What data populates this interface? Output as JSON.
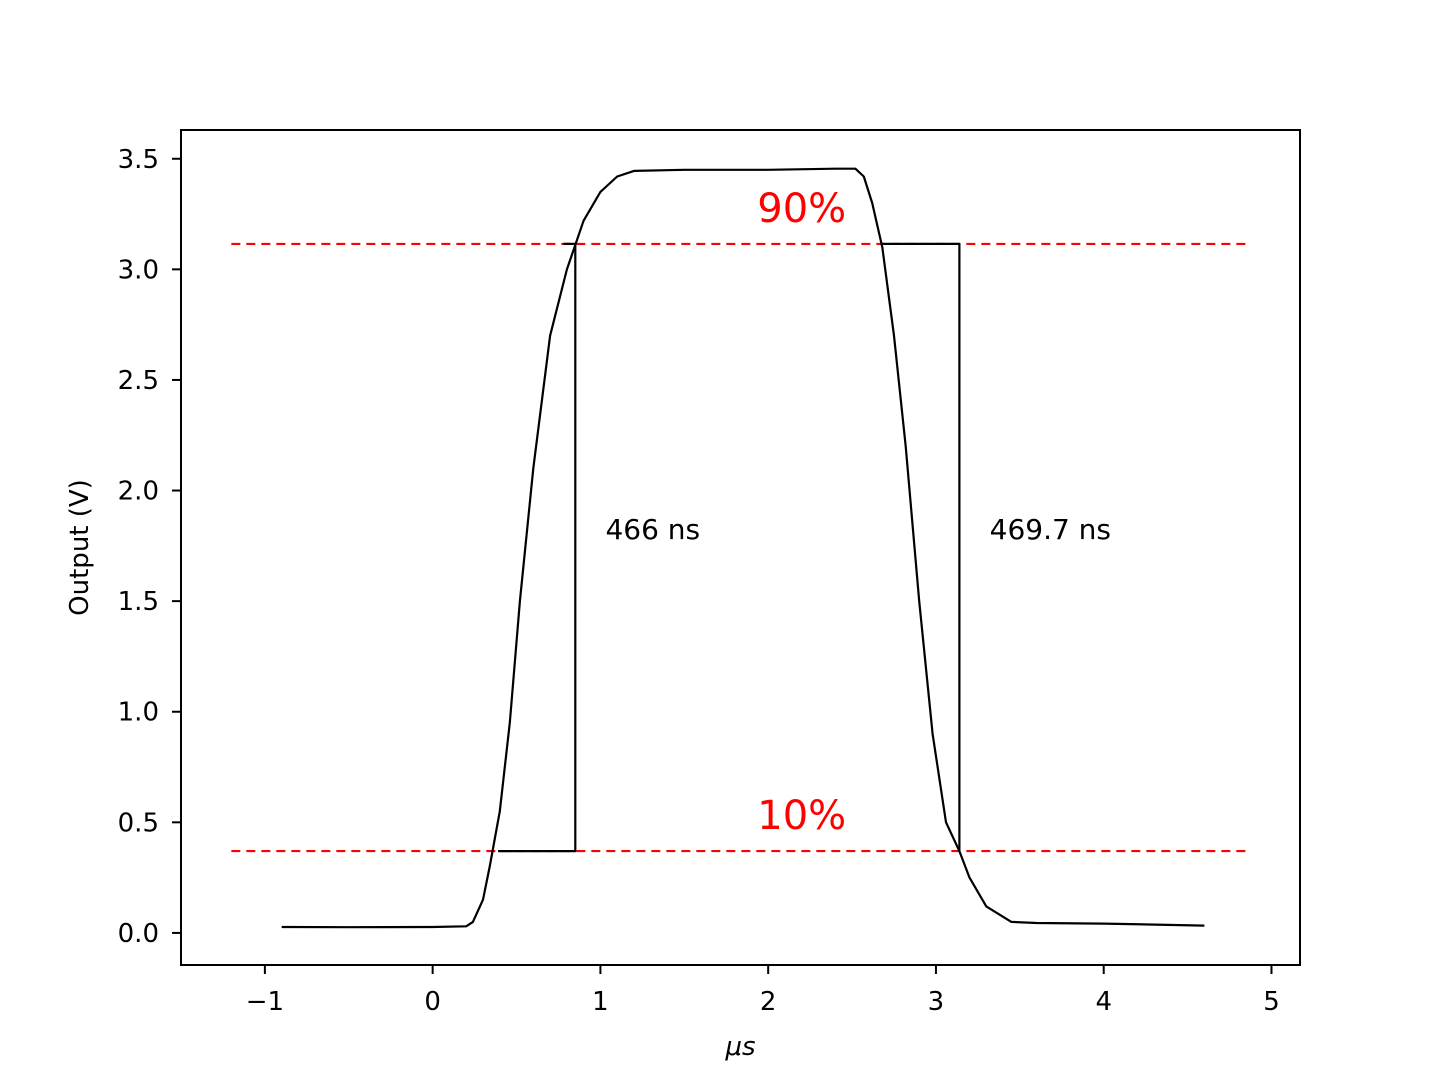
{
  "chart_data": {
    "type": "line",
    "title": "",
    "xlabel": "μs",
    "ylabel": "Output (V)",
    "xlim": [
      -1.5,
      5.17
    ],
    "ylim": [
      -0.145,
      3.63
    ],
    "x_ticks": [
      -1,
      0,
      1,
      2,
      3,
      4,
      5
    ],
    "x_tick_labels": [
      "−1",
      "0",
      "1",
      "2",
      "3",
      "4",
      "5"
    ],
    "y_ticks": [
      0.0,
      0.5,
      1.0,
      1.5,
      2.0,
      2.5,
      3.0,
      3.5
    ],
    "y_tick_labels": [
      "0.0",
      "0.5",
      "1.0",
      "1.5",
      "2.0",
      "2.5",
      "3.0",
      "3.5"
    ],
    "grid": false,
    "series": [
      {
        "color": "#000000",
        "points": [
          [
            -0.9,
            0.027
          ],
          [
            -0.5,
            0.026
          ],
          [
            0.0,
            0.027
          ],
          [
            0.2,
            0.03
          ],
          [
            0.24,
            0.05
          ],
          [
            0.3,
            0.15
          ],
          [
            0.34,
            0.3
          ],
          [
            0.4,
            0.55
          ],
          [
            0.46,
            0.95
          ],
          [
            0.52,
            1.5
          ],
          [
            0.6,
            2.1
          ],
          [
            0.7,
            2.7
          ],
          [
            0.8,
            3.0
          ],
          [
            0.9,
            3.22
          ],
          [
            1.0,
            3.35
          ],
          [
            1.1,
            3.42
          ],
          [
            1.2,
            3.445
          ],
          [
            1.5,
            3.45
          ],
          [
            2.0,
            3.45
          ],
          [
            2.4,
            3.455
          ],
          [
            2.52,
            3.455
          ],
          [
            2.57,
            3.42
          ],
          [
            2.62,
            3.3
          ],
          [
            2.68,
            3.1
          ],
          [
            2.75,
            2.7
          ],
          [
            2.82,
            2.2
          ],
          [
            2.9,
            1.5
          ],
          [
            2.98,
            0.9
          ],
          [
            3.06,
            0.5
          ],
          [
            3.14,
            0.37
          ],
          [
            3.2,
            0.25
          ],
          [
            3.3,
            0.12
          ],
          [
            3.45,
            0.05
          ],
          [
            3.6,
            0.045
          ],
          [
            4.0,
            0.042
          ],
          [
            4.6,
            0.033
          ]
        ]
      },
      {
        "color": "#000000",
        "points": [
          [
            0.39,
            0.37
          ],
          [
            0.85,
            0.37
          ],
          [
            0.85,
            3.115
          ],
          [
            0.78,
            3.115
          ]
        ]
      },
      {
        "color": "#000000",
        "points": [
          [
            2.67,
            3.115
          ],
          [
            3.14,
            3.115
          ],
          [
            3.14,
            0.37
          ]
        ]
      }
    ],
    "hlines": [
      {
        "y": 3.115,
        "x_from": -1.2,
        "x_to": 4.86,
        "style": "dashed",
        "color": "#ff0000",
        "label": "90%"
      },
      {
        "y": 0.37,
        "x_from": -1.2,
        "x_to": 4.86,
        "style": "dashed",
        "color": "#ff0000",
        "label": "10%"
      }
    ],
    "annotations": [
      {
        "text": "466 ns",
        "x": 1.03,
        "y": 1.78
      },
      {
        "text": "469.7 ns",
        "x": 3.32,
        "y": 1.78
      }
    ],
    "threshold_label_color": "#ff0000",
    "threshold_label_x": 2.2,
    "threshold_label_offset": 0.1
  }
}
